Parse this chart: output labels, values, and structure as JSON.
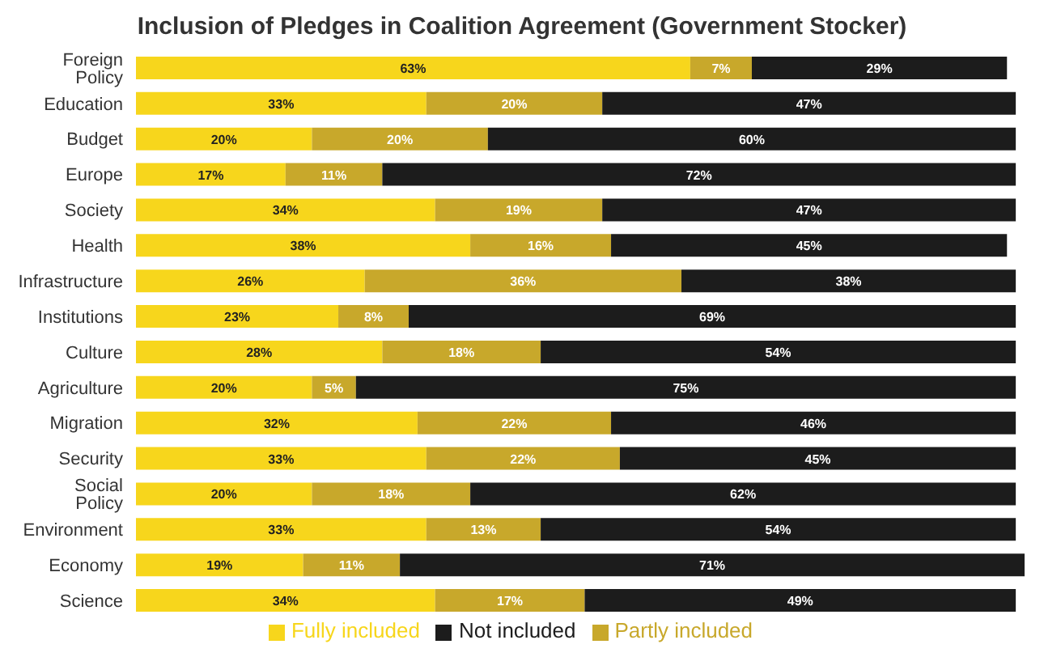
{
  "chart_data": {
    "type": "bar",
    "title": "Inclusion of Pledges in Coalition Agreement (Government Stocker)",
    "orientation": "horizontal",
    "stacked": true,
    "legend": "bottom",
    "tick_labels": "y",
    "xlim": [
      0,
      101
    ],
    "categories": [
      "Foreign Policy",
      "Education",
      "Budget",
      "Europe",
      "Society",
      "Health",
      "Infrastructure",
      "Institutions",
      "Culture",
      "Agriculture",
      "Migration",
      "Security",
      "Social Policy",
      "Environment",
      "Economy",
      "Science"
    ],
    "series": [
      {
        "name": "Fully included",
        "color": "#f7d61c",
        "values": [
          63,
          33,
          20,
          17,
          34,
          38,
          26,
          23,
          28,
          20,
          32,
          33,
          20,
          33,
          19,
          34
        ],
        "value_labels": [
          "63%",
          "33%",
          "20%",
          "17%",
          "34%",
          "38%",
          "26%",
          "23%",
          "28%",
          "20%",
          "32%",
          "33%",
          "20%",
          "33%",
          "19%",
          "34%"
        ]
      },
      {
        "name": "Partly included",
        "color": "#c8a82b",
        "values": [
          7,
          20,
          20,
          11,
          19,
          16,
          36,
          8,
          18,
          5,
          22,
          22,
          18,
          13,
          11,
          17
        ],
        "value_labels": [
          "7%",
          "20%",
          "20%",
          "11%",
          "19%",
          "16%",
          "36%",
          "8%",
          "18%",
          "5%",
          "22%",
          "22%",
          "18%",
          "13%",
          "11%",
          "17%"
        ]
      },
      {
        "name": "Not included",
        "color": "#1c1c1c",
        "values": [
          29,
          47,
          60,
          72,
          47,
          45,
          38,
          69,
          54,
          75,
          46,
          45,
          62,
          54,
          71,
          49
        ],
        "value_labels": [
          "29%",
          "47%",
          "60%",
          "72%",
          "47%",
          "45%",
          "38%",
          "69%",
          "54%",
          "75%",
          "46%",
          "45%",
          "62%",
          "54%",
          "71%",
          "49%"
        ]
      }
    ]
  }
}
